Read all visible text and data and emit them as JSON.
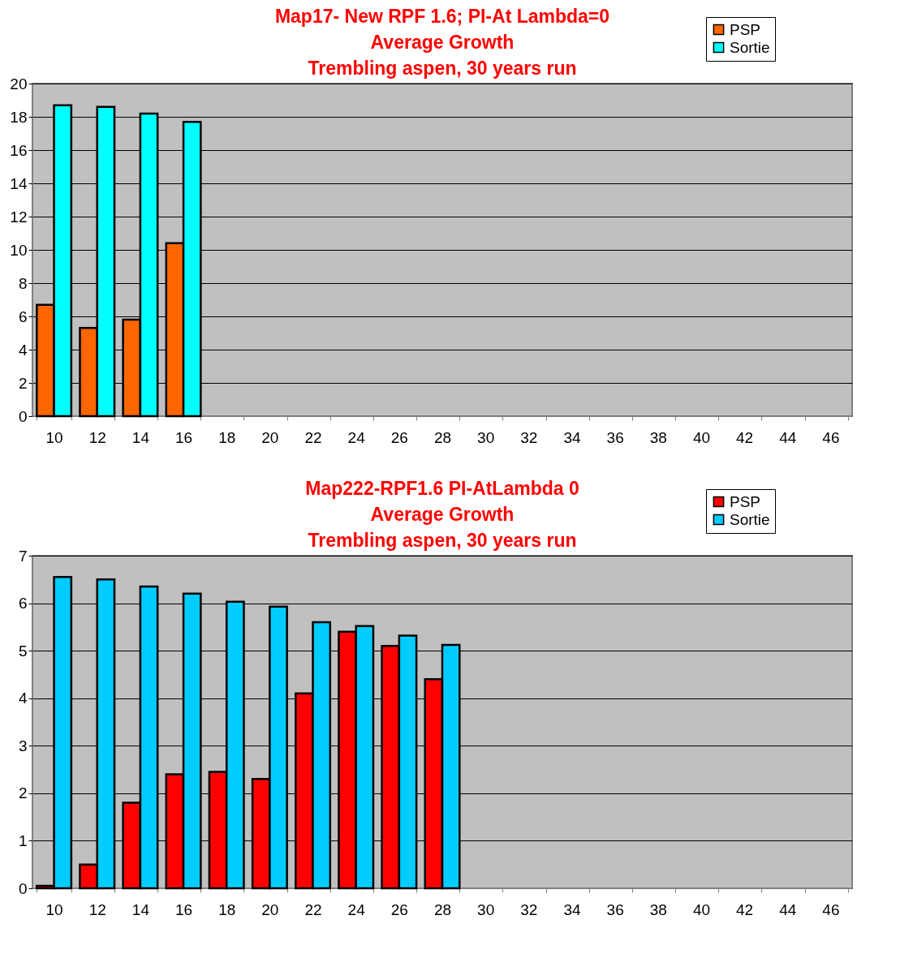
{
  "chart_data": [
    {
      "type": "bar",
      "title": "Map17- New RPF 1.6; PI-At Lambda=0\nAverage Growth\nTrembling aspen, 30 years run",
      "categories": [
        "10",
        "12",
        "14",
        "16",
        "18",
        "20",
        "22",
        "24",
        "26",
        "28",
        "30",
        "32",
        "34",
        "36",
        "38",
        "40",
        "42",
        "44",
        "46"
      ],
      "series": [
        {
          "name": "PSP",
          "color": "#ff6600",
          "values": [
            6.7,
            5.3,
            5.8,
            10.4,
            null,
            null,
            null,
            null,
            null,
            null,
            null,
            null,
            null,
            null,
            null,
            null,
            null,
            null,
            null
          ]
        },
        {
          "name": "Sortie",
          "color": "#00ffff",
          "values": [
            18.7,
            18.6,
            18.2,
            17.7,
            null,
            null,
            null,
            null,
            null,
            null,
            null,
            null,
            null,
            null,
            null,
            null,
            null,
            null,
            null
          ]
        }
      ],
      "ylim": [
        0,
        20
      ],
      "yticks": [
        0,
        2,
        4,
        6,
        8,
        10,
        12,
        14,
        16,
        18,
        20
      ],
      "grid": "y",
      "legend": "top right"
    },
    {
      "type": "bar",
      "title": "Map222-RPF1.6 PI-AtLambda 0\nAverage Growth\nTrembling aspen, 30 years run",
      "categories": [
        "10",
        "12",
        "14",
        "16",
        "18",
        "20",
        "22",
        "24",
        "26",
        "28",
        "30",
        "32",
        "34",
        "36",
        "38",
        "40",
        "42",
        "44",
        "46"
      ],
      "series": [
        {
          "name": "PSP",
          "color": "#ff0000",
          "values": [
            0.05,
            0.5,
            1.8,
            2.4,
            2.45,
            2.3,
            4.1,
            5.4,
            5.1,
            4.4,
            null,
            null,
            null,
            null,
            null,
            null,
            null,
            null,
            null
          ]
        },
        {
          "name": "Sortie",
          "color": "#00ccff",
          "values": [
            6.55,
            6.5,
            6.35,
            6.2,
            6.03,
            5.93,
            5.6,
            5.52,
            5.32,
            5.12,
            null,
            null,
            null,
            null,
            null,
            null,
            null,
            null,
            null
          ]
        }
      ],
      "ylim": [
        0,
        7
      ],
      "yticks": [
        0,
        1,
        2,
        3,
        4,
        5,
        6,
        7
      ],
      "grid": "y",
      "legend": "top right"
    }
  ]
}
